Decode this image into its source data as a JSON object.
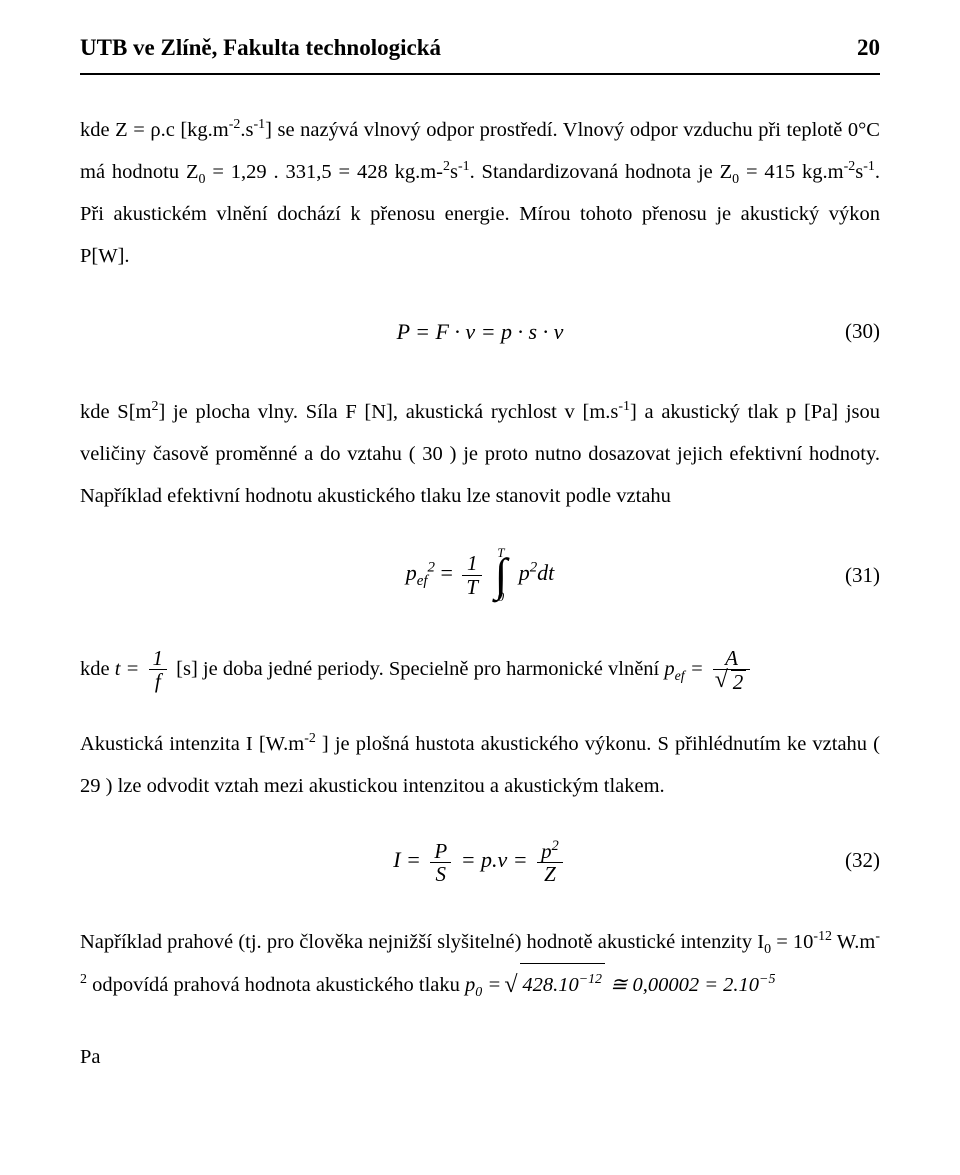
{
  "header": {
    "title": "UTB ve Zlíně, Fakulta technologická",
    "page_number": "20"
  },
  "colors": {
    "text": "#000000",
    "background": "#ffffff",
    "rule": "#000000"
  },
  "typography": {
    "family": "Times New Roman",
    "body_size_pt": 12,
    "header_size_pt": 13,
    "header_weight": "bold",
    "line_height": 2.05
  },
  "paragraphs": {
    "p1a": "kde Z = ρ.c [kg.m",
    "p1b": ".s",
    "p1c": "] se nazývá vlnový odpor prostředí. Vlnový odpor vzduchu při teplotě 0°C má hodnotu Z",
    "p1d": " = 1,29 . 331,5 = 428 kg.m-",
    "p1e": "s",
    "p1f": ". Standardizovaná hodnota je Z",
    "p1g": " = 415 kg.m",
    "p1h": "s",
    "p1i": ". Při akustickém vlnění dochází k přenosu energie. Mírou tohoto přenosu je akustický výkon P[W].",
    "p2a": "kde S[m",
    "p2b": "] je plocha vlny. Síla F [N], akustická rychlost v [m.s",
    "p2c": "] a akustický tlak p [Pa] jsou veličiny časově proměnné a do vztahu ( 30 ) je proto nutno dosazovat jejich efektivní hodnoty. Například efektivní hodnotu akustického tlaku lze stanovit podle vztahu",
    "p3a": "kde ",
    "p3b": " [s] je doba jedné periody. Specielně pro harmonické vlnění ",
    "p4a": "Akustická intenzita I [W.m",
    "p4b": " ] je plošná hustota akustického výkonu. S přihlédnutím ke vztahu ( 29 ) lze odvodit vztah mezi akustickou intenzitou a akustickým tlakem.",
    "p5a": "Například prahové (tj. pro člověka nejnižší slyšitelné) hodnotě akustické intenzity I",
    "p5b": " = 10",
    "p5c": " W.m",
    "p5d": " odpovídá prahová hodnota akustického tlaku ",
    "p5e": "Pa"
  },
  "equations": {
    "eq30": {
      "body": "P = F · v = p · s · v",
      "num": "(30)"
    },
    "eq31": {
      "lhs_base": "p",
      "lhs_sub": "ef",
      "lhs_sup": "2",
      "frac_num": "1",
      "frac_den": "T",
      "int_upper": "T",
      "int_lower": "0",
      "integrand_base": "p",
      "integrand_sup": "2",
      "dt": "dt",
      "num": "(31)"
    },
    "inline_t": {
      "lhs": "t =",
      "num": "1",
      "den": "f"
    },
    "inline_pef": {
      "lhs_base": "p",
      "lhs_sub": "ef",
      "eq": " = ",
      "num": "A",
      "den_sqrt": "2"
    },
    "eq32": {
      "lhs": "I = ",
      "frac1_num": "P",
      "frac1_den": "S",
      "mid": " = p.v = ",
      "frac2_num_base": "p",
      "frac2_num_sup": "2",
      "frac2_den": "Z",
      "num": "(32)"
    },
    "inline_p0": {
      "lhs_base": "p",
      "lhs_sub": "0",
      "eq": " = ",
      "sqrt_a": "428.10",
      "sqrt_exp": "−12",
      "approx": " ≅ 0,00002 = 2.10",
      "exp2": "−5"
    }
  },
  "sups": {
    "m2": "-2",
    "m1": "-1",
    "z0": "0",
    "two": "2",
    "neg12": "-12",
    "neg2": "-2"
  }
}
